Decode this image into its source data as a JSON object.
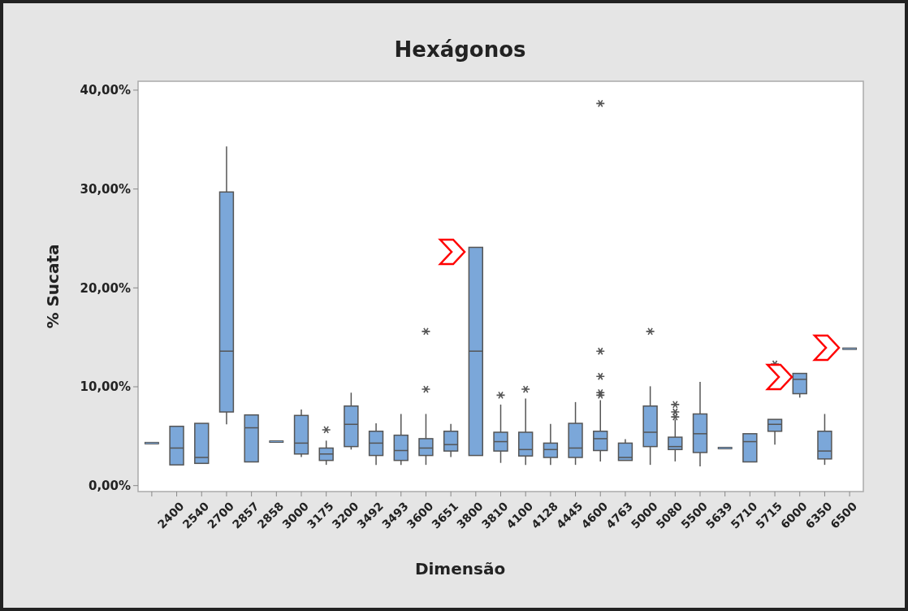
{
  "chart_data": {
    "type": "box",
    "title": "Hexágonos",
    "xlabel": "Dimensão",
    "ylabel": "% Sucata",
    "categories": [
      null,
      "2400",
      "2540",
      "2700",
      "2857",
      "2858",
      "3000",
      "3175",
      "3200",
      "3492",
      "3493",
      "3600",
      "3651",
      "3800",
      "3810",
      "4100",
      "4128",
      "4445",
      "4600",
      "4763",
      "5000",
      "5080",
      "5500",
      "5639",
      "5710",
      "5715",
      "6000",
      "6350",
      "6500"
    ],
    "color": "#7ba7d9",
    "boxes": [
      {
        "low": 4.3,
        "q1": 4.3,
        "median": 4.3,
        "q3": 4.3,
        "high": 4.3
      },
      {
        "low": 2.1,
        "q1": 2.1,
        "median": 3.8,
        "q3": 6.0,
        "high": 6.0
      },
      {
        "low": 2.25,
        "q1": 2.25,
        "median": 2.85,
        "q3": 6.3,
        "high": 6.3
      },
      {
        "low": 6.2,
        "q1": 7.45,
        "median": 13.6,
        "q3": 29.7,
        "high": 34.3
      },
      {
        "low": 2.4,
        "q1": 2.4,
        "median": 5.85,
        "q3": 7.15,
        "high": 7.15
      },
      {
        "low": 4.45,
        "q1": 4.45,
        "median": 4.45,
        "q3": 4.45,
        "high": 4.45
      },
      {
        "low": 2.9,
        "q1": 3.2,
        "median": 4.3,
        "q3": 7.1,
        "high": 7.7
      },
      {
        "low": 2.1,
        "q1": 2.55,
        "median": 3.2,
        "q3": 3.8,
        "high": 4.55,
        "outliers": [
          5.65
        ]
      },
      {
        "low": 3.65,
        "q1": 3.95,
        "median": 6.2,
        "q3": 8.05,
        "high": 9.4
      },
      {
        "low": 2.1,
        "q1": 3.05,
        "median": 4.3,
        "q3": 5.5,
        "high": 6.3
      },
      {
        "low": 2.1,
        "q1": 2.55,
        "median": 3.55,
        "q3": 5.1,
        "high": 7.25
      },
      {
        "low": 2.1,
        "q1": 3.05,
        "median": 3.8,
        "q3": 4.75,
        "high": 7.25,
        "outliers": [
          9.75,
          15.6
        ]
      },
      {
        "low": 2.9,
        "q1": 3.5,
        "median": 4.15,
        "q3": 5.5,
        "high": 6.25
      },
      {
        "low": 3.05,
        "q1": 3.05,
        "median": 13.6,
        "q3": 24.1,
        "high": 24.1
      },
      {
        "low": 2.3,
        "q1": 3.5,
        "median": 4.45,
        "q3": 5.4,
        "high": 8.2,
        "outliers": [
          9.15
        ]
      },
      {
        "low": 2.1,
        "q1": 3.0,
        "median": 3.65,
        "q3": 5.4,
        "high": 8.8,
        "outliers": [
          9.75
        ]
      },
      {
        "low": 2.1,
        "q1": 2.85,
        "median": 3.65,
        "q3": 4.3,
        "high": 6.25
      },
      {
        "low": 2.1,
        "q1": 2.85,
        "median": 3.8,
        "q3": 6.3,
        "high": 8.45
      },
      {
        "low": 2.45,
        "q1": 3.55,
        "median": 4.75,
        "q3": 5.5,
        "high": 8.65,
        "outliers": [
          9.15,
          9.4,
          11.05,
          13.6,
          38.65
        ]
      },
      {
        "low": 2.55,
        "q1": 2.55,
        "median": 2.85,
        "q3": 4.3,
        "high": 4.7
      },
      {
        "low": 2.1,
        "q1": 3.95,
        "median": 5.4,
        "q3": 8.05,
        "high": 10.05,
        "outliers": [
          15.6
        ]
      },
      {
        "low": 2.45,
        "q1": 3.65,
        "median": 3.95,
        "q3": 4.9,
        "high": 6.7,
        "outliers": [
          6.95,
          7.45,
          8.2
        ]
      },
      {
        "low": 1.95,
        "q1": 3.35,
        "median": 5.25,
        "q3": 7.25,
        "high": 10.5
      },
      {
        "low": 3.8,
        "q1": 3.8,
        "median": 3.8,
        "q3": 3.8,
        "high": 3.8
      },
      {
        "low": 2.4,
        "q1": 2.4,
        "median": 4.45,
        "q3": 5.25,
        "high": 5.25
      },
      {
        "low": 4.15,
        "q1": 5.5,
        "median": 6.2,
        "q3": 6.7,
        "high": 6.7,
        "outliers": [
          12.3
        ]
      },
      {
        "low": 8.9,
        "q1": 9.3,
        "median": 10.75,
        "q3": 11.35,
        "high": 11.35
      },
      {
        "low": 2.1,
        "q1": 2.7,
        "median": 3.5,
        "q3": 5.5,
        "high": 7.25
      },
      {
        "low": 13.85,
        "q1": 13.85,
        "median": 13.85,
        "q3": 13.85,
        "high": 13.85
      }
    ],
    "ylim": [
      -0.6,
      40.9
    ],
    "yticks": [
      {
        "value": 0,
        "label": "0,00%"
      },
      {
        "value": 10,
        "label": "10,00%"
      },
      {
        "value": 20,
        "label": "20,00%"
      },
      {
        "value": 30,
        "label": "30,00%"
      },
      {
        "value": 40,
        "label": "40,00%"
      }
    ],
    "grid": false
  }
}
